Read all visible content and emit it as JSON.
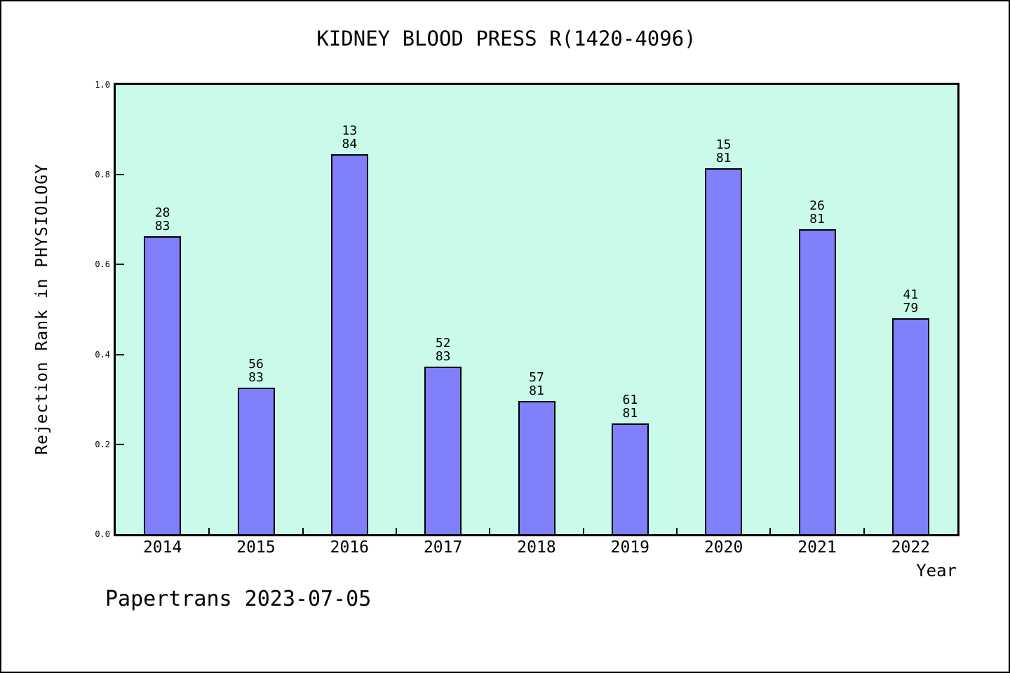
{
  "chart_data": {
    "type": "bar",
    "title": "KIDNEY BLOOD PRESS R(1420-4096)",
    "xlabel": "Year",
    "ylabel": "Rejection Rank in PHYSIOLOGY",
    "footer": "Papertrans 2023-07-05",
    "categories": [
      "2014",
      "2015",
      "2016",
      "2017",
      "2018",
      "2019",
      "2020",
      "2021",
      "2022"
    ],
    "values": [
      0.6627,
      0.3253,
      0.8452,
      0.3735,
      0.2963,
      0.2469,
      0.8148,
      0.679,
      0.481
    ],
    "bar_labels": [
      [
        "28",
        "83"
      ],
      [
        "56",
        "83"
      ],
      [
        "13",
        "84"
      ],
      [
        "52",
        "83"
      ],
      [
        "57",
        "81"
      ],
      [
        "61",
        "81"
      ],
      [
        "15",
        "81"
      ],
      [
        "26",
        "81"
      ],
      [
        "41",
        "79"
      ]
    ],
    "ylim": [
      0,
      1
    ],
    "yticks": [
      0.0,
      0.2,
      0.4,
      0.6,
      0.8,
      1.0
    ],
    "ytick_labels": [
      "0.0",
      "0.2",
      "0.4",
      "0.6",
      "0.8",
      "1.0"
    ],
    "grid": false,
    "legend": "none",
    "bar_color": "#8080fa",
    "bar_edge_color": "#000000",
    "plot_bg_color": "#c9faea",
    "figure_bg_color": "#ffffff"
  }
}
